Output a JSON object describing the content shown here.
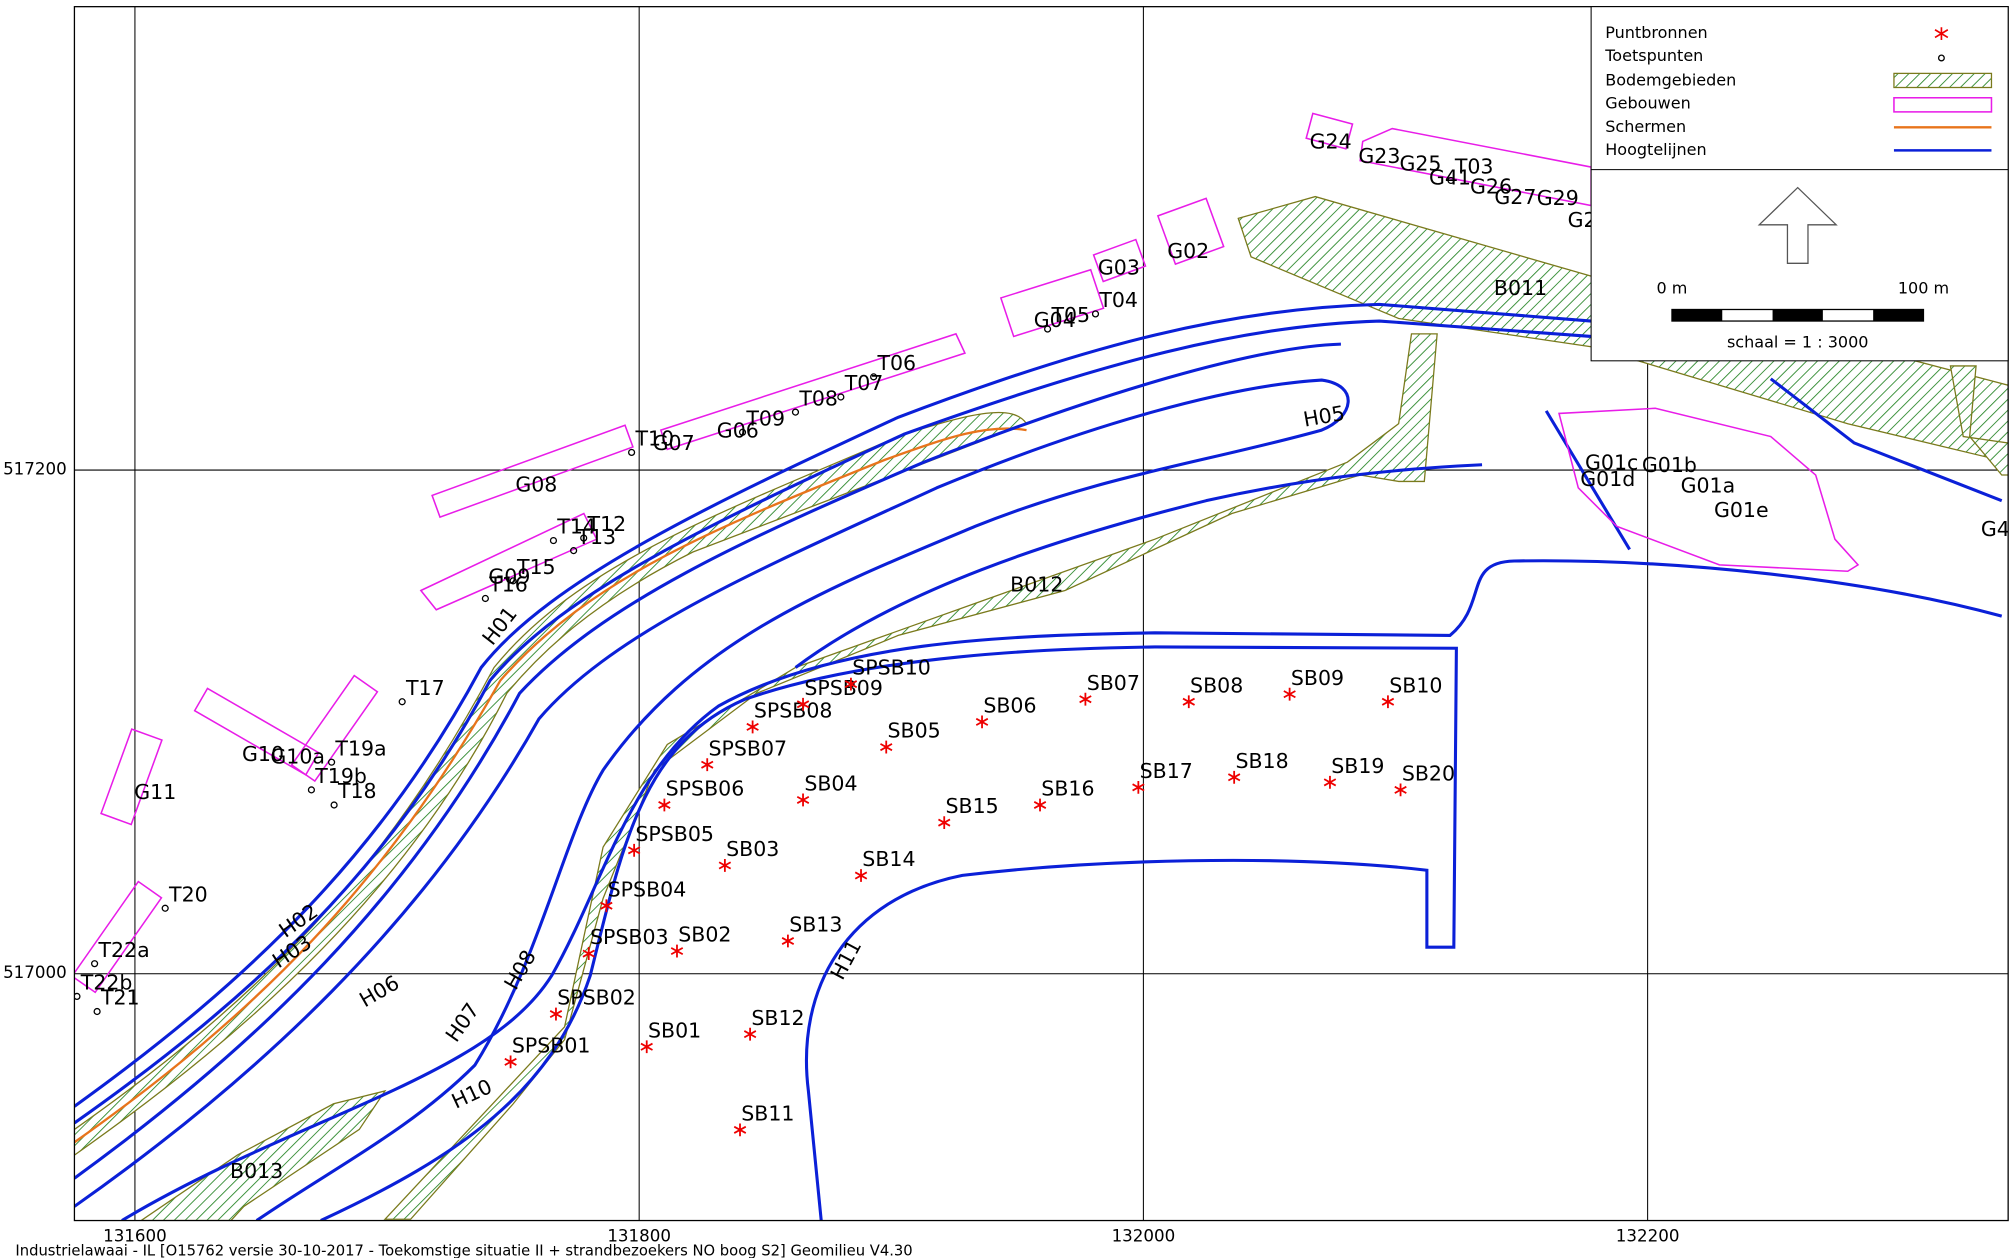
{
  "map": {
    "xlim": [
      131576,
      132343
    ],
    "ylim": [
      516902,
      517384
    ],
    "xticks": [
      131600,
      131800,
      132000,
      132200
    ],
    "yticks": [
      517000,
      517200
    ],
    "puntbronnen": [
      {
        "name": "SB01",
        "x": 131803,
        "y": 516971
      },
      {
        "name": "SB02",
        "x": 131815,
        "y": 517009
      },
      {
        "name": "SB03",
        "x": 131834,
        "y": 517043
      },
      {
        "name": "SB04",
        "x": 131865,
        "y": 517069
      },
      {
        "name": "SB05",
        "x": 131898,
        "y": 517090
      },
      {
        "name": "SB06",
        "x": 131936,
        "y": 517100
      },
      {
        "name": "SB07",
        "x": 131977,
        "y": 517109
      },
      {
        "name": "SB08",
        "x": 132018,
        "y": 517108
      },
      {
        "name": "SB09",
        "x": 132058,
        "y": 517111
      },
      {
        "name": "SB10",
        "x": 132097,
        "y": 517108
      },
      {
        "name": "SB11",
        "x": 131840,
        "y": 516938
      },
      {
        "name": "SB12",
        "x": 131844,
        "y": 516976
      },
      {
        "name": "SB13",
        "x": 131859,
        "y": 517013
      },
      {
        "name": "SB14",
        "x": 131888,
        "y": 517039
      },
      {
        "name": "SB15",
        "x": 131921,
        "y": 517060
      },
      {
        "name": "SB16",
        "x": 131959,
        "y": 517067
      },
      {
        "name": "SB17",
        "x": 131998,
        "y": 517074
      },
      {
        "name": "SB18",
        "x": 132036,
        "y": 517078
      },
      {
        "name": "SB19",
        "x": 132074,
        "y": 517076
      },
      {
        "name": "SB20",
        "x": 132102,
        "y": 517073
      },
      {
        "name": "SPSB01",
        "x": 131749,
        "y": 516965
      },
      {
        "name": "SPSB02",
        "x": 131767,
        "y": 516984
      },
      {
        "name": "SPSB03",
        "x": 131780,
        "y": 517008
      },
      {
        "name": "SPSB04",
        "x": 131787,
        "y": 517027
      },
      {
        "name": "SPSB05",
        "x": 131798,
        "y": 517049
      },
      {
        "name": "SPSB06",
        "x": 131810,
        "y": 517067
      },
      {
        "name": "SPSB07",
        "x": 131827,
        "y": 517083
      },
      {
        "name": "SPSB08",
        "x": 131845,
        "y": 517098
      },
      {
        "name": "SPSB09",
        "x": 131865,
        "y": 517107
      },
      {
        "name": "SPSB10",
        "x": 131884,
        "y": 517115
      }
    ],
    "toetspunten": [
      {
        "name": "T03",
        "x": 132122,
        "y": 517315
      },
      {
        "name": "T04",
        "x": 131981,
        "y": 517262
      },
      {
        "name": "T05",
        "x": 131962,
        "y": 517256
      },
      {
        "name": "T06",
        "x": 131893,
        "y": 517237
      },
      {
        "name": "T07",
        "x": 131880,
        "y": 517229
      },
      {
        "name": "T08",
        "x": 131862,
        "y": 517223
      },
      {
        "name": "T09",
        "x": 131841,
        "y": 517215
      },
      {
        "name": "T10",
        "x": 131797,
        "y": 517207
      },
      {
        "name": "T12",
        "x": 131778,
        "y": 517173
      },
      {
        "name": "T13",
        "x": 131774,
        "y": 517168
      },
      {
        "name": "T14",
        "x": 131766,
        "y": 517172
      },
      {
        "name": "T15",
        "x": 131750,
        "y": 517156
      },
      {
        "name": "T16",
        "x": 131739,
        "y": 517149
      },
      {
        "name": "T17",
        "x": 131706,
        "y": 517108
      },
      {
        "name": "T18",
        "x": 131679,
        "y": 517067
      },
      {
        "name": "T19a",
        "x": 131678,
        "y": 517084
      },
      {
        "name": "T19b",
        "x": 131670,
        "y": 517073
      },
      {
        "name": "T20",
        "x": 131612,
        "y": 517026
      },
      {
        "name": "T21",
        "x": 131585,
        "y": 516985
      },
      {
        "name": "T22a",
        "x": 131584,
        "y": 517004
      },
      {
        "name": "T22b",
        "x": 131577,
        "y": 516991
      }
    ],
    "buildings": [
      "G24",
      "G23",
      "G25",
      "G41",
      "G26",
      "G27",
      "G29",
      "G2",
      "G03",
      "G02",
      "G04",
      "G07",
      "G06",
      "G08",
      "G09",
      "G10",
      "G10a",
      "G11",
      "G01c",
      "G01b",
      "G01d",
      "G01a",
      "G01e",
      "G4"
    ],
    "line_labels": [
      "H01",
      "H02",
      "H03",
      "H05",
      "H06",
      "H07",
      "H08",
      "H10",
      "H11"
    ],
    "area_labels": [
      "B011",
      "B012",
      "B013"
    ]
  },
  "legend": {
    "items": [
      "Puntbronnen",
      "Toetspunten",
      "Bodemgebieden",
      "Gebouwen",
      "Schermen",
      "Hoogtelijnen"
    ],
    "scale_start": "0 m",
    "scale_end": "100 m",
    "scale_text": "schaal = 1 : 3000"
  },
  "footer": "Industrielawaai - IL  [O15762 versie 30-10-2017 - Toekomstige situatie II + strandbezoekers NO boog S2]  Geomilieu V4.30"
}
